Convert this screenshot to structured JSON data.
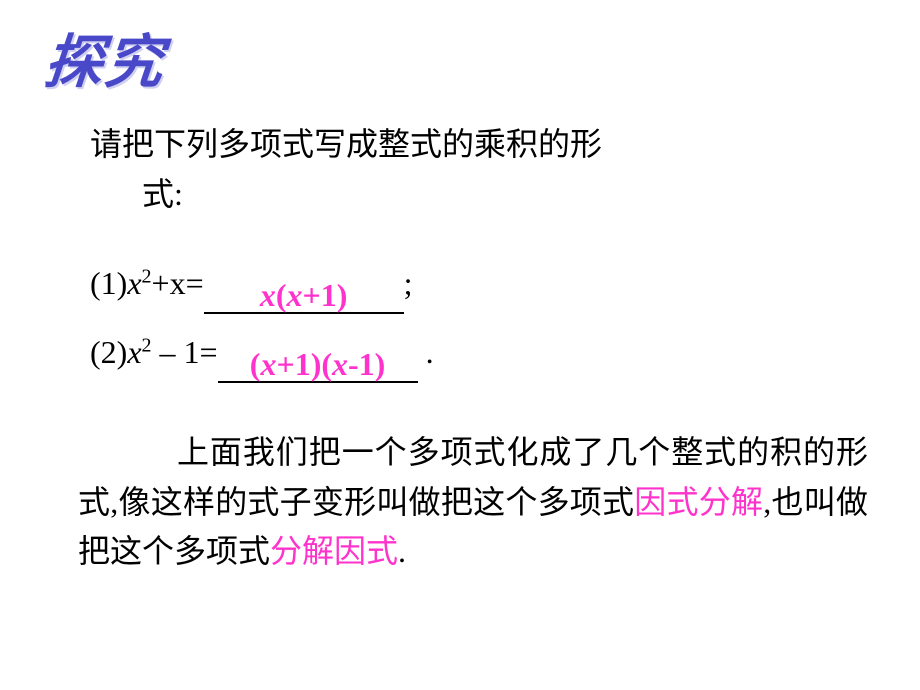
{
  "title": "探究",
  "instruction": {
    "line1": "请把下列多项式写成整式的乘积的形",
    "line2": "式:"
  },
  "problems": [
    {
      "label": "(1)",
      "expr_prefix": "x",
      "expr_sup": "2",
      "expr_suffix": "+x=",
      "answer_parts": [
        "x",
        "(",
        "x",
        "+1",
        ")"
      ],
      "terminator": ";"
    },
    {
      "label": "(2)",
      "expr_prefix": "x",
      "expr_sup": "2",
      "expr_suffix": " – 1=",
      "answer_parts": [
        "(",
        "x",
        "+1",
        ")(",
        "x",
        "-1",
        ")"
      ],
      "terminator": " ."
    }
  ],
  "conclusion": {
    "part1": "上面我们把一个多项式化成了几个整式的积的形式,像这样的式子变形叫做把这个多项式",
    "hl1": "因式分解",
    "part2": ",也叫做把这个多项式",
    "hl2": "分解因式",
    "part3": "."
  },
  "colors": {
    "title": "#4848c8",
    "body": "#000000",
    "highlight": "#ff33cc",
    "background": "#ffffff"
  },
  "fontsize": {
    "title": 58,
    "body": 32
  }
}
